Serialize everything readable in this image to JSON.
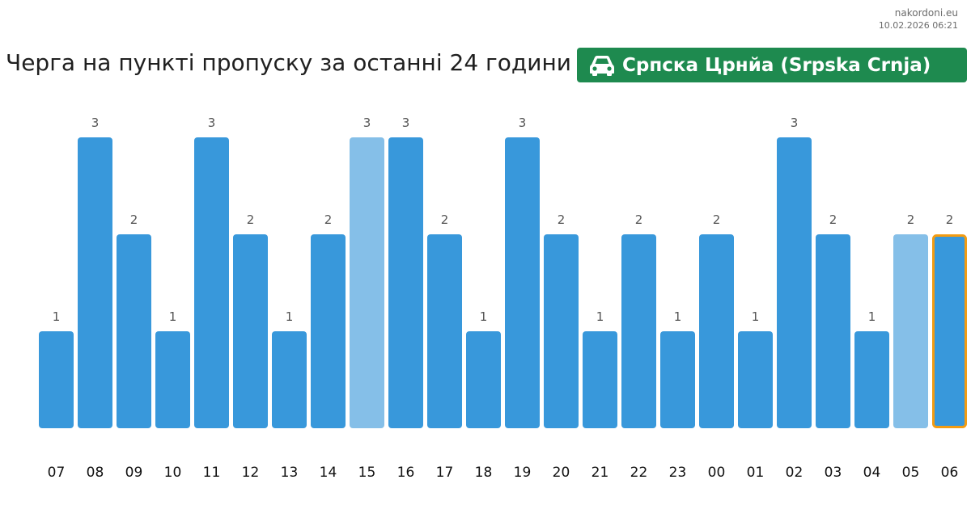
{
  "header": {
    "site": "nakordoni.eu",
    "timestamp": "10.02.2026 06:21",
    "title": "Черга на пункті пропуску за останні 24 години",
    "checkpoint_name": "Српска Црнйа (Srpska Crnja)",
    "checkpoint_icon": "car-icon"
  },
  "colors": {
    "bar": "#3898db",
    "bar_light": "#85bfe8",
    "highlight_border": "#f39c12",
    "badge": "#1e8a4f",
    "value_label": "#555555",
    "tick_label": "#111111"
  },
  "chart_data": {
    "type": "bar",
    "categories": [
      "07",
      "08",
      "09",
      "10",
      "11",
      "12",
      "13",
      "14",
      "15",
      "16",
      "17",
      "18",
      "19",
      "20",
      "21",
      "22",
      "23",
      "00",
      "01",
      "02",
      "03",
      "04",
      "05",
      "06"
    ],
    "values": [
      1,
      3,
      2,
      1,
      3,
      2,
      1,
      2,
      3,
      3,
      2,
      1,
      3,
      2,
      1,
      2,
      1,
      2,
      1,
      3,
      2,
      1,
      2,
      2
    ],
    "light_bars": [
      "15",
      "05"
    ],
    "highlighted_bar": "06",
    "ylim": [
      0,
      3
    ],
    "grid": false,
    "xlabel": "",
    "ylabel": ""
  }
}
